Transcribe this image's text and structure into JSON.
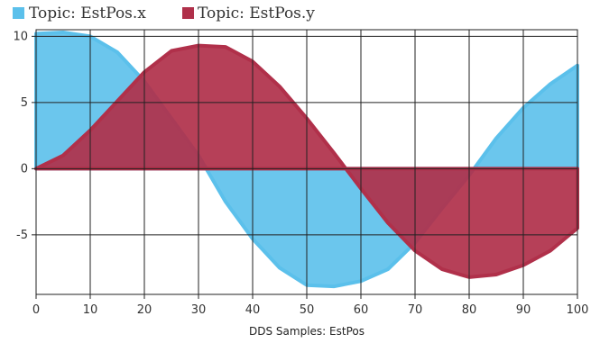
{
  "chart_data": {
    "type": "area",
    "xlabel": "DDS Samples: EstPos",
    "ylabel": "",
    "xlim": [
      0,
      100
    ],
    "ylim": [
      -9.5,
      10.5
    ],
    "x_ticks": [
      0,
      10,
      20,
      30,
      40,
      50,
      60,
      70,
      80,
      90,
      100
    ],
    "y_ticks": [
      -5,
      0,
      5,
      10
    ],
    "grid": true,
    "legend": "top-left",
    "series": [
      {
        "name": "Topic: EstPos.x",
        "color": "#5bc0eb",
        "x": [
          0,
          5,
          10,
          15,
          20,
          25,
          30,
          35,
          40,
          45,
          50,
          55,
          60,
          65,
          70,
          75,
          80,
          85,
          90,
          95,
          100
        ],
        "values": [
          10.2,
          10.3,
          10.0,
          8.8,
          6.6,
          3.8,
          1.0,
          -2.5,
          -5.3,
          -7.5,
          -8.8,
          -8.9,
          -8.5,
          -7.6,
          -5.6,
          -3.0,
          -0.5,
          2.3,
          4.6,
          6.4,
          7.8
        ]
      },
      {
        "name": "Topic: EstPos.y",
        "color": "#b0304a",
        "x": [
          0,
          5,
          10,
          15,
          20,
          25,
          30,
          35,
          40,
          45,
          50,
          55,
          60,
          65,
          70,
          75,
          80,
          85,
          90,
          95,
          100
        ],
        "values": [
          0.0,
          1.0,
          2.9,
          5.1,
          7.3,
          8.9,
          9.3,
          9.2,
          8.1,
          6.2,
          3.8,
          1.2,
          -1.5,
          -4.1,
          -6.2,
          -7.6,
          -8.2,
          -8.0,
          -7.3,
          -6.2,
          -4.5
        ]
      }
    ]
  }
}
